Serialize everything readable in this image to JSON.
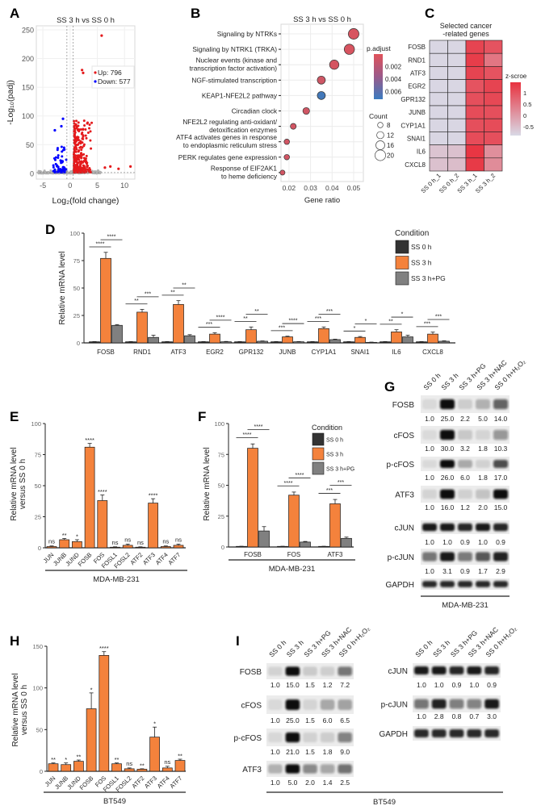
{
  "panel_labels": {
    "A": "A",
    "B": "B",
    "C": "C",
    "D": "D",
    "E": "E",
    "F": "F",
    "G": "G",
    "H": "H",
    "I": "I"
  },
  "colors": {
    "up": "#e41a1c",
    "down": "#0000ff",
    "ns": "#b0b0b0",
    "ss0h": "#333333",
    "ss3h": "#f4823c",
    "ss3hpg": "#808080",
    "padj_low": "#e0525a",
    "padj_high": "#3a7bc0",
    "z_high": "#e8323f",
    "z_low": "#d9d9e6"
  },
  "chart_data": [
    {
      "id": "A",
      "type": "scatter",
      "title": "SS 3 h vs SS 0 h",
      "xlabel": "Log₂(fold change)",
      "ylabel": "-Log₁₀(padj)",
      "xlim": [
        -6.2,
        11.9
      ],
      "ylim": [
        -10,
        257
      ],
      "xticks": [
        -5,
        0,
        5,
        10
      ],
      "yticks": [
        0,
        50,
        100,
        150,
        200,
        250
      ],
      "legend": [
        {
          "label": "Up: 796",
          "color": "#e41a1c"
        },
        {
          "label": "Down: 577",
          "color": "#0000ff"
        }
      ],
      "legend_position": "top-right",
      "thresholds": {
        "log2fc": 0.58,
        "neg_log10_padj": 1.3
      },
      "notable_points": [
        [
          5.8,
          240
        ],
        [
          2.2,
          180
        ],
        [
          2.4,
          175
        ],
        [
          6.4,
          10
        ],
        [
          7.4,
          12
        ],
        [
          8.9,
          8
        ],
        [
          11.1,
          12
        ],
        [
          -1.3,
          95
        ],
        [
          -2.8,
          75
        ],
        [
          -1.6,
          82
        ]
      ],
      "grid": true
    },
    {
      "id": "B",
      "type": "scatter",
      "title": "SS 3 h vs SS 0 h",
      "xlabel": "Gene ratio",
      "xlim": [
        0.0163,
        0.0545
      ],
      "xticks": [
        0.02,
        0.03,
        0.04,
        0.05
      ],
      "categories": [
        "Signaling by NTRKs",
        "Signaling by NTRK1 (TRKA)",
        "Nuclear events (kinase and\ntranscription factor activation)",
        "NGF-stimulated transcription",
        "KEAP1-NFE2L2 pathway",
        "Circadian clock",
        "NFE2L2 regulating anti-oxidant/\ndetoxification enzymes",
        "ATF4 activates genes in response\nto endoplasmic reticulum stress",
        "PERK regulates gene expression",
        "Response of EIF2AK1\nto heme deficiency"
      ],
      "gene_ratio": [
        0.05,
        0.048,
        0.041,
        0.035,
        0.035,
        0.028,
        0.022,
        0.019,
        0.019,
        0.017
      ],
      "p_adjust": [
        0.0004,
        0.0004,
        0.0005,
        0.0008,
        0.0068,
        0.0007,
        0.0006,
        0.0006,
        0.0006,
        0.0006
      ],
      "count": [
        20,
        19,
        17,
        14,
        14,
        11,
        9,
        8,
        8,
        7
      ],
      "color_legend": {
        "title": "p.adjust",
        "ticks": [
          0.002,
          0.004,
          0.006
        ],
        "range": [
          0,
          0.0072
        ]
      },
      "size_legend": {
        "title": "Count",
        "ticks": [
          8,
          12,
          16,
          20
        ]
      },
      "legend_position": "right",
      "grid": true
    },
    {
      "id": "C",
      "type": "heatmap",
      "title": "Selected cancer\n-related genes",
      "rows": [
        "FOSB",
        "RND1",
        "ATF3",
        "EGR2",
        "GPR132",
        "JUNB",
        "CYP1A1",
        "SNAI1",
        "IL6",
        "CXCL8"
      ],
      "columns": [
        "SS 0 h_1",
        "SS 0 h_2",
        "SS 3 h_1",
        "SS 3 h_2"
      ],
      "values": [
        [
          -0.85,
          -0.85,
          1.2,
          1.0
        ],
        [
          -0.85,
          -0.85,
          1.3,
          0.5
        ],
        [
          -0.85,
          -0.85,
          1.2,
          1.0
        ],
        [
          -0.85,
          -0.85,
          1.0,
          1.2
        ],
        [
          -0.85,
          -0.85,
          1.05,
          1.15
        ],
        [
          -0.85,
          -0.85,
          1.1,
          1.05
        ],
        [
          -0.85,
          -0.85,
          1.05,
          1.1
        ],
        [
          -0.85,
          -0.85,
          1.1,
          1.05
        ],
        [
          -0.6,
          -0.55,
          1.4,
          0.15
        ],
        [
          -0.55,
          -0.5,
          1.35,
          0.2
        ]
      ],
      "color_legend": {
        "title": "z-scroe",
        "ticks": [
          1,
          0.5,
          0,
          -0.5
        ],
        "range": [
          -0.89,
          1.46
        ]
      }
    },
    {
      "id": "D",
      "type": "bar",
      "ylabel": "Relative mRNA level",
      "ylim": [
        0,
        100
      ],
      "yticks": [
        0,
        25,
        50,
        75,
        100
      ],
      "categories": [
        "FOSB",
        "RND1",
        "ATF3",
        "EGR2",
        "GPR132",
        "JUNB",
        "CYP1A1",
        "SNAI1",
        "IL6",
        "CXCL8"
      ],
      "series": [
        {
          "name": "SS 0 h",
          "values": [
            1,
            1,
            1,
            1,
            1,
            1,
            1,
            1,
            1,
            1
          ],
          "errors": [
            0.2,
            0.2,
            0.2,
            0.2,
            0.2,
            0.2,
            0.2,
            0.2,
            0.2,
            0.2
          ]
        },
        {
          "name": "SS 3 h",
          "values": [
            77,
            28,
            35,
            8,
            12,
            5.5,
            13,
            5,
            10,
            8
          ],
          "errors": [
            5.5,
            2.5,
            3.5,
            1.2,
            2.5,
            0.6,
            1.5,
            0.8,
            2,
            1.8
          ]
        },
        {
          "name": "SS 3 h+PG",
          "values": [
            16,
            5,
            6.5,
            1,
            1.5,
            1,
            3,
            0.5,
            5.5,
            1.5
          ],
          "errors": [
            0.7,
            2,
            1,
            0.3,
            0.3,
            0.2,
            0.4,
            0.2,
            1.5,
            0.4
          ]
        }
      ],
      "significance": [
        [
          "****",
          "****"
        ],
        [
          "**",
          "***"
        ],
        [
          "**",
          "**"
        ],
        [
          "***",
          "****"
        ],
        [
          "**",
          "**"
        ],
        [
          "***",
          "****"
        ],
        [
          "***",
          "***"
        ],
        [
          "*",
          "*"
        ],
        [
          "**",
          "*"
        ],
        [
          "***",
          "***"
        ]
      ],
      "legend_title": "Condition",
      "legend_position": "top-right"
    },
    {
      "id": "E",
      "type": "bar",
      "ylabel": "Relative mRNA level\nversus SS 0 h",
      "ylim": [
        0,
        100
      ],
      "yticks": [
        0,
        25,
        50,
        75,
        100
      ],
      "categories": [
        "JUN",
        "JUNB",
        "JUND",
        "FOSB",
        "FOS",
        "FOSL1",
        "FOSL2",
        "ATF2",
        "ATF3",
        "ATF4",
        "ATF7"
      ],
      "values": [
        1,
        6.5,
        5,
        81,
        38,
        0.5,
        2,
        0.5,
        36,
        1,
        2
      ],
      "errors": [
        0.5,
        1,
        1.5,
        3,
        4.5,
        0.3,
        1,
        0.3,
        3.5,
        0.5,
        1
      ],
      "significance": [
        "ns",
        "**",
        "*",
        "****",
        "****",
        "ns",
        "ns",
        "ns",
        "****",
        "ns",
        "ns"
      ],
      "group_label": "MDA-MB-231"
    },
    {
      "id": "F",
      "type": "bar",
      "ylabel": "Relative mRNA level",
      "ylim": [
        0,
        100
      ],
      "yticks": [
        0,
        25,
        50,
        75,
        100
      ],
      "categories": [
        "FOSB",
        "FOS",
        "ATF3"
      ],
      "series": [
        {
          "name": "SS 0 h",
          "values": [
            0.5,
            0.5,
            0.5
          ],
          "errors": [
            0.1,
            0.1,
            0.1
          ]
        },
        {
          "name": "SS 3 h",
          "values": [
            80,
            42,
            35
          ],
          "errors": [
            3.5,
            2.5,
            3.5
          ]
        },
        {
          "name": "SS 3 h+PG",
          "values": [
            13,
            4,
            7
          ],
          "errors": [
            3.5,
            0.5,
            1
          ]
        }
      ],
      "significance": [
        [
          "****",
          "****"
        ],
        [
          "****",
          "****"
        ],
        [
          "***",
          "***"
        ]
      ],
      "legend_title": "Condition",
      "legend_position": "top-right",
      "group_label": "MDA-MB-231"
    },
    {
      "id": "H",
      "type": "bar",
      "ylabel": "Relative mRNA level\nversus SS 0 h",
      "ylim": [
        0,
        150
      ],
      "yticks": [
        0,
        50,
        100,
        150
      ],
      "categories": [
        "JUN",
        "JUNB",
        "JUND",
        "FOSB",
        "FOS",
        "FOSL1",
        "FOSL2",
        "ATF2",
        "ATF3",
        "ATF4",
        "ATF7"
      ],
      "values": [
        9,
        8,
        12,
        75,
        139,
        9,
        3,
        2.5,
        41,
        4,
        13
      ],
      "errors": [
        1,
        2,
        1.5,
        19,
        4.5,
        1,
        1,
        0.5,
        12,
        2,
        1.5
      ],
      "significance": [
        "**",
        "*",
        "**",
        "*",
        "****",
        "**",
        "ns",
        "**",
        "*",
        "ns",
        "**"
      ],
      "group_label": "BT549"
    }
  ],
  "blots": {
    "G": {
      "lanes": [
        "SS 0 h",
        "SS 3 h",
        "SS 3 h+PG",
        "SS 3 h+NAC",
        "SS 0 h+H₂O₂"
      ],
      "rows": [
        {
          "name": "FOSB",
          "values": [
            "1.0",
            "25.0",
            "2.2",
            "5.0",
            "14.0"
          ]
        },
        {
          "name": "cFOS",
          "values": [
            "1.0",
            "30.0",
            "3.2",
            "1.8",
            "10.3"
          ]
        },
        {
          "name": "p-cFOS",
          "values": [
            "1.0",
            "26.0",
            "6.0",
            "1.8",
            "17.0"
          ]
        },
        {
          "name": "ATF3",
          "values": [
            "1.0",
            "16.0",
            "1.2",
            "2.0",
            "15.0"
          ]
        },
        {
          "name": "cJUN",
          "values": [
            "1.0",
            "1.0",
            "0.9",
            "1.0",
            "0.9"
          ]
        },
        {
          "name": "p-cJUN",
          "values": [
            "1.0",
            "3.1",
            "0.9",
            "1.7",
            "2.9"
          ]
        },
        {
          "name": "GAPDH",
          "values": []
        }
      ],
      "cell_line": "MDA-MB-231"
    },
    "I": {
      "lanes": [
        "SS 0 h",
        "SS 3 h",
        "SS 3 h+PG",
        "SS 3 h+NAC",
        "SS 0 h+H₂O₂"
      ],
      "left_rows": [
        {
          "name": "FOSB",
          "values": [
            "1.0",
            "15.0",
            "1.5",
            "1.2",
            "7.2"
          ]
        },
        {
          "name": "cFOS",
          "values": [
            "1.0",
            "25.0",
            "1.5",
            "6.0",
            "6.5"
          ]
        },
        {
          "name": "p-cFOS",
          "values": [
            "1.0",
            "21.0",
            "1.5",
            "1.8",
            "9.0"
          ]
        },
        {
          "name": "ATF3",
          "values": [
            "1.0",
            "5.0",
            "2.0",
            "1.4",
            "2.5"
          ]
        }
      ],
      "right_rows": [
        {
          "name": "cJUN",
          "values": [
            "1.0",
            "1.0",
            "0.9",
            "1.0",
            "0.9"
          ]
        },
        {
          "name": "p-cJUN",
          "values": [
            "1.0",
            "2.8",
            "0.8",
            "0.7",
            "3.0"
          ]
        },
        {
          "name": "GAPDH",
          "values": []
        }
      ],
      "cell_line": "BT549"
    }
  }
}
